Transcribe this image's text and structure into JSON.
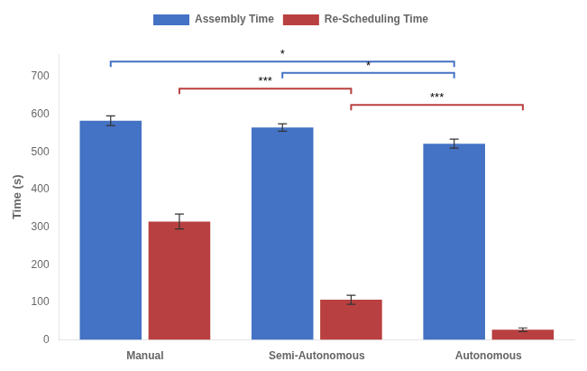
{
  "chart_data": {
    "type": "bar",
    "categories": [
      "Manual",
      "Semi-Autonomous",
      "Autonomous"
    ],
    "series": [
      {
        "name": "Assembly Time",
        "color": "#4472C4",
        "values": [
          583,
          565,
          522
        ],
        "errors": [
          13,
          10,
          12
        ]
      },
      {
        "name": "Re-Scheduling Time",
        "color": "#B94040",
        "values": [
          315,
          107,
          27
        ],
        "errors": [
          20,
          12,
          5
        ]
      }
    ],
    "ylabel": "Time (s)",
    "ylim": [
      0,
      760
    ],
    "yticks": [
      0,
      100,
      200,
      300,
      400,
      500,
      600,
      700
    ],
    "grid": false,
    "legend": "top",
    "annotations": [
      {
        "text": "*",
        "series": "Assembly Time",
        "from": "Manual",
        "to": "Autonomous",
        "y": 740
      },
      {
        "text": "*",
        "series": "Assembly Time",
        "from": "Semi-Autonomous",
        "to": "Autonomous",
        "y": 710
      },
      {
        "text": "***",
        "series": "Re-Scheduling Time",
        "from": "Manual",
        "to": "Semi-Autonomous",
        "y": 668
      },
      {
        "text": "***",
        "series": "Re-Scheduling Time",
        "from": "Semi-Autonomous",
        "to": "Autonomous",
        "y": 625
      }
    ]
  }
}
